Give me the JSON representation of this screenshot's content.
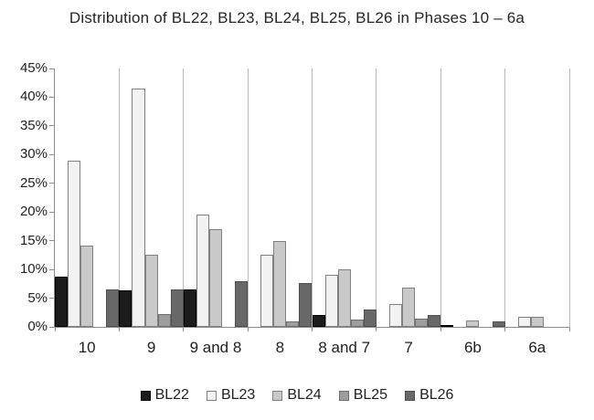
{
  "title": "Distribution of BL22, BL23, BL24, BL25, BL26 in Phases 10 – 6a",
  "chart_data": {
    "type": "bar",
    "title": "Distribution of BL22, BL23, BL24, BL25, BL26 in Phases 10 – 6a",
    "xlabel": "",
    "ylabel": "",
    "ylim": [
      0,
      45
    ],
    "ytick_step": 5,
    "ytick_format": "percent",
    "grid": "vertical-category-separators",
    "legend_position": "bottom",
    "categories": [
      "10",
      "9",
      "9 and 8",
      "8",
      "8 and 7",
      "7",
      "6b",
      "6a"
    ],
    "series": [
      {
        "name": "BL22",
        "color": "#1c1c1c",
        "border": "#000000",
        "values": [
          8.7,
          6.3,
          6.5,
          0,
          2.0,
          0,
          0.4,
          0
        ]
      },
      {
        "name": "BL23",
        "color": "#f2f2f2",
        "border": "#808080",
        "values": [
          29.0,
          41.5,
          19.5,
          12.5,
          9.0,
          4.0,
          0,
          1.8
        ]
      },
      {
        "name": "BL24",
        "color": "#c9c9c9",
        "border": "#808080",
        "values": [
          14.2,
          12.5,
          17.0,
          15.0,
          10.0,
          6.9,
          1.1,
          1.8
        ]
      },
      {
        "name": "BL25",
        "color": "#9d9d9d",
        "border": "#6e6e6e",
        "values": [
          0,
          2.3,
          0,
          0.9,
          1.2,
          1.4,
          0,
          0
        ]
      },
      {
        "name": "BL26",
        "color": "#686868",
        "border": "#4f4f4f",
        "values": [
          6.5,
          6.6,
          8.0,
          7.7,
          3.0,
          2.1,
          1.0,
          0
        ]
      }
    ],
    "colors": {
      "axis": "#8c8c8c",
      "gridline": "#b8b8b8",
      "text": "#1f1f1f"
    }
  }
}
